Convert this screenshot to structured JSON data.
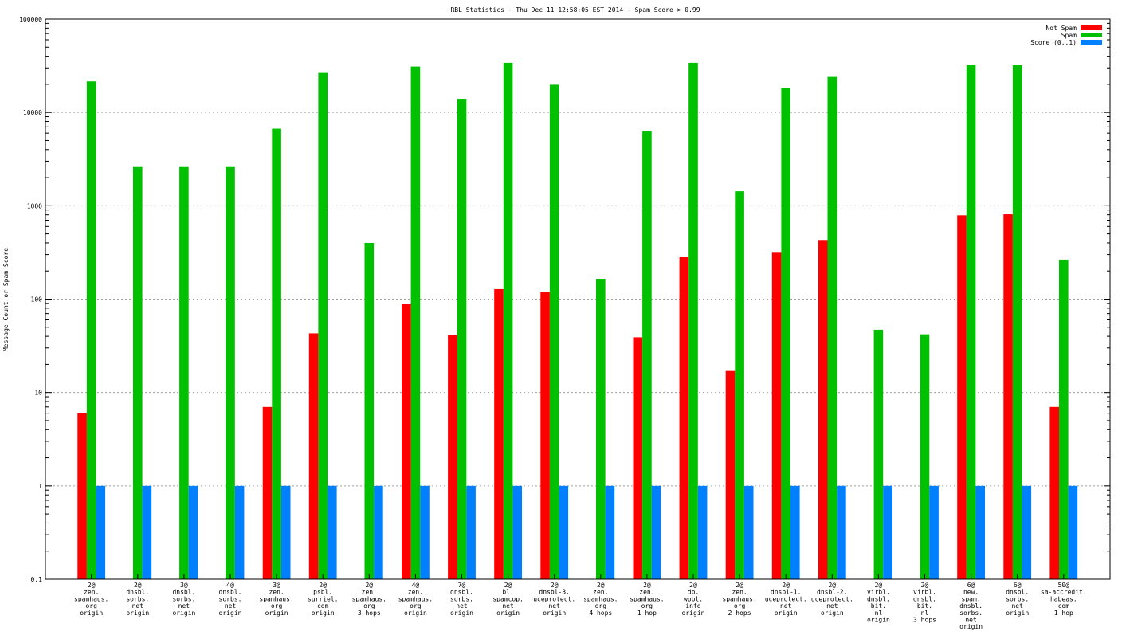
{
  "chart_data": {
    "type": "bar",
    "title": "RBL Statistics - Thu Dec 11 12:58:05 EST 2014 - Spam Score > 0.99",
    "ylabel": "Message Count or Spam Score",
    "xlabel": "",
    "yscale": "log",
    "ylim": [
      0.1,
      100000
    ],
    "yticks": [
      "0.1",
      "1",
      "10",
      "100",
      "1000",
      "10000",
      "100000"
    ],
    "grid": true,
    "legend_position": "top-right",
    "categories": [
      [
        "2@",
        "zen.",
        "spamhaus.",
        "org",
        "origin"
      ],
      [
        "2@",
        "dnsbl.",
        "sorbs.",
        "net",
        "origin"
      ],
      [
        "3@",
        "dnsbl.",
        "sorbs.",
        "net",
        "origin"
      ],
      [
        "4@",
        "dnsbl.",
        "sorbs.",
        "net",
        "origin"
      ],
      [
        "3@",
        "zen.",
        "spamhaus.",
        "org",
        "origin"
      ],
      [
        "2@",
        "psbl.",
        "surriel.",
        "com",
        "origin"
      ],
      [
        "2@",
        "zen.",
        "spamhaus.",
        "org",
        "3 hops"
      ],
      [
        "4@",
        "zen.",
        "spamhaus.",
        "org",
        "origin"
      ],
      [
        "7@",
        "dnsbl.",
        "sorbs.",
        "net",
        "origin"
      ],
      [
        "2@",
        "bl.",
        "spamcop.",
        "net",
        "origin"
      ],
      [
        "2@",
        "dnsbl-3.",
        "uceprotect.",
        "net",
        "origin"
      ],
      [
        "2@",
        "zen.",
        "spamhaus.",
        "org",
        "4 hops"
      ],
      [
        "2@",
        "zen.",
        "spamhaus.",
        "org",
        "1 hop"
      ],
      [
        "2@",
        "db.",
        "wpbl.",
        "info",
        "origin"
      ],
      [
        "2@",
        "zen.",
        "spamhaus.",
        "org",
        "2 hops"
      ],
      [
        "2@",
        "dnsbl-1.",
        "uceprotect.",
        "net",
        "origin"
      ],
      [
        "2@",
        "dnsbl-2.",
        "uceprotect.",
        "net",
        "origin"
      ],
      [
        "2@",
        "virbl.",
        "dnsbl.",
        "bit.",
        "nl",
        "origin"
      ],
      [
        "2@",
        "virbl.",
        "dnsbl.",
        "bit.",
        "nl",
        "3 hops"
      ],
      [
        "6@",
        "new.",
        "spam.",
        "dnsbl.",
        "sorbs.",
        "net",
        "origin"
      ],
      [
        "6@",
        "dnsbl.",
        "sorbs.",
        "net",
        "origin"
      ],
      [
        "50@",
        "sa-accredit.",
        "habeas.",
        "com",
        "1 hop"
      ]
    ],
    "series": [
      {
        "name": "Not Spam",
        "color": "#ff0000",
        "values": [
          6,
          null,
          null,
          null,
          7,
          43,
          null,
          88,
          41,
          128,
          120,
          null,
          39,
          285,
          17,
          320,
          430,
          null,
          null,
          790,
          810,
          7
        ]
      },
      {
        "name": "Spam",
        "color": "#00c000",
        "values": [
          21500,
          2650,
          2650,
          2650,
          6700,
          27000,
          400,
          31000,
          14000,
          34000,
          19800,
          165,
          6300,
          34000,
          1430,
          18300,
          24000,
          47,
          42,
          32000,
          32000,
          265
        ]
      },
      {
        "name": "Score (0..1)",
        "color": "#0080ff",
        "values": [
          1,
          1,
          1,
          1,
          1,
          1,
          1,
          1,
          1,
          1,
          1,
          1,
          1,
          1,
          1,
          1,
          1,
          1,
          1,
          1,
          1,
          1
        ]
      }
    ]
  }
}
